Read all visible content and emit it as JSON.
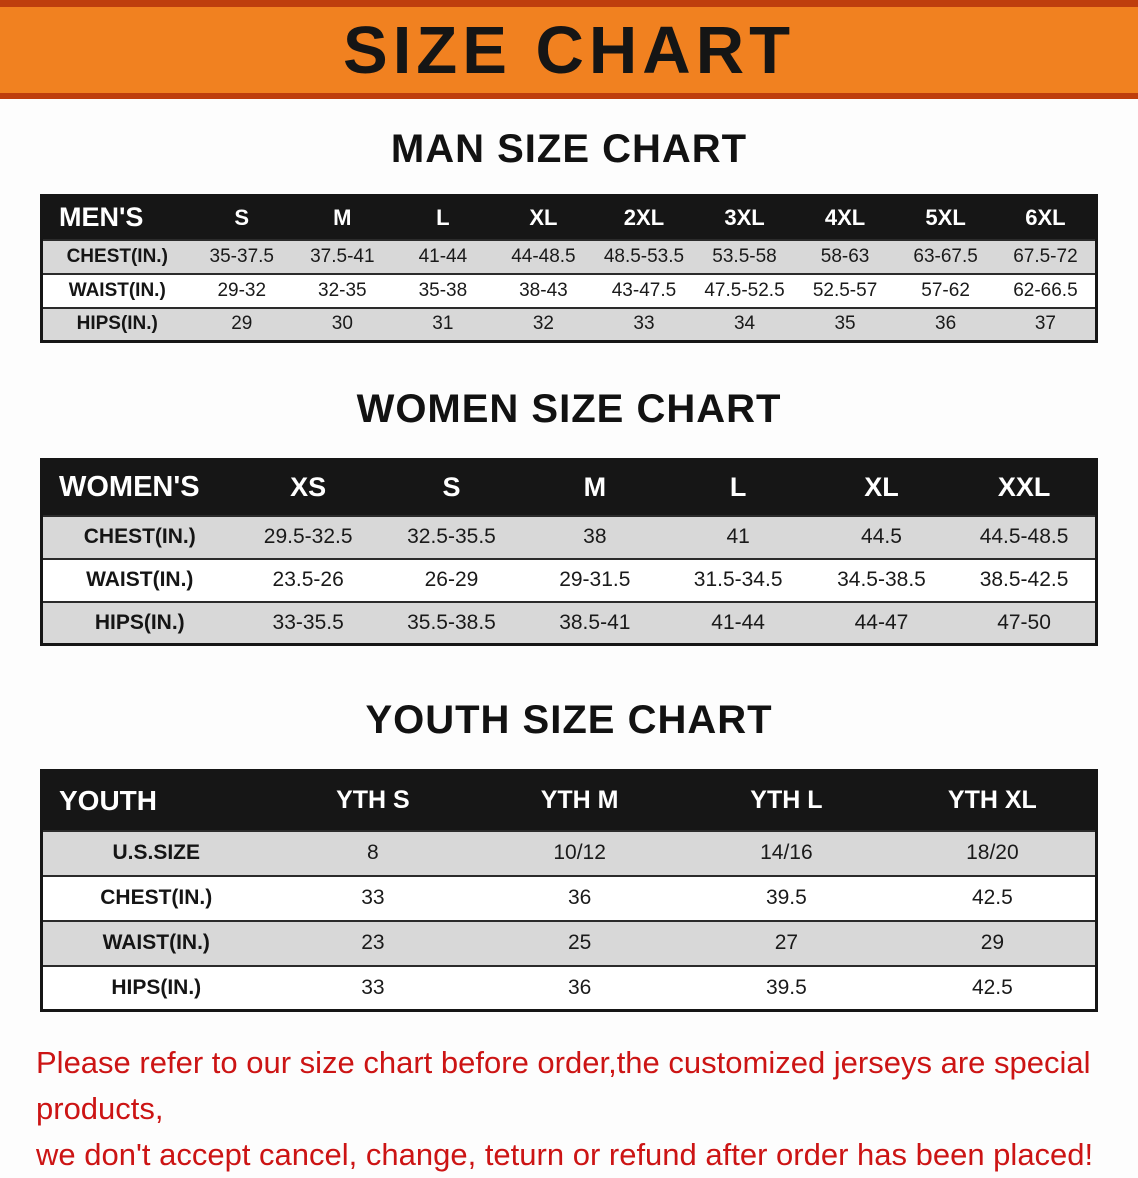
{
  "banner": {
    "title": "SIZE CHART"
  },
  "men": {
    "heading": "MAN SIZE CHART",
    "header": [
      "MEN'S",
      "S",
      "M",
      "L",
      "XL",
      "2XL",
      "3XL",
      "4XL",
      "5XL",
      "6XL"
    ],
    "rows": [
      [
        "CHEST(IN.)",
        "35-37.5",
        "37.5-41",
        "41-44",
        "44-48.5",
        "48.5-53.5",
        "53.5-58",
        "58-63",
        "63-67.5",
        "67.5-72"
      ],
      [
        "WAIST(IN.)",
        "29-32",
        "32-35",
        "35-38",
        "38-43",
        "43-47.5",
        "47.5-52.5",
        "52.5-57",
        "57-62",
        "62-66.5"
      ],
      [
        "HIPS(IN.)",
        "29",
        "30",
        "31",
        "32",
        "33",
        "34",
        "35",
        "36",
        "37"
      ]
    ]
  },
  "women": {
    "heading": "WOMEN SIZE CHART",
    "header": [
      "WOMEN'S",
      "XS",
      "S",
      "M",
      "L",
      "XL",
      "XXL"
    ],
    "rows": [
      [
        "CHEST(IN.)",
        "29.5-32.5",
        "32.5-35.5",
        "38",
        "41",
        "44.5",
        "44.5-48.5"
      ],
      [
        "WAIST(IN.)",
        "23.5-26",
        "26-29",
        "29-31.5",
        "31.5-34.5",
        "34.5-38.5",
        "38.5-42.5"
      ],
      [
        "HIPS(IN.)",
        "33-35.5",
        "35.5-38.5",
        "38.5-41",
        "41-44",
        "44-47",
        "47-50"
      ]
    ]
  },
  "youth": {
    "heading": "YOUTH SIZE CHART",
    "header": [
      "YOUTH",
      "YTH S",
      "YTH M",
      "YTH L",
      "YTH XL"
    ],
    "rows": [
      [
        "U.S.SIZE",
        "8",
        "10/12",
        "14/16",
        "18/20"
      ],
      [
        "CHEST(IN.)",
        "33",
        "36",
        "39.5",
        "42.5"
      ],
      [
        "WAIST(IN.)",
        "23",
        "25",
        "27",
        "29"
      ],
      [
        "HIPS(IN.)",
        "33",
        "36",
        "39.5",
        "42.5"
      ]
    ]
  },
  "footer": {
    "line1": "Please refer to our size chart before order,the customized jerseys are special products,",
    "line2": "we don't accept cancel, change, teturn or refund after order has been placed!"
  },
  "colors": {
    "banner_orange": "#F18120",
    "banner_line_red": "#BE3E0D",
    "table_header_black": "#161616",
    "row_gray": "#D8D8D8",
    "footer_red": "#CC1414"
  }
}
